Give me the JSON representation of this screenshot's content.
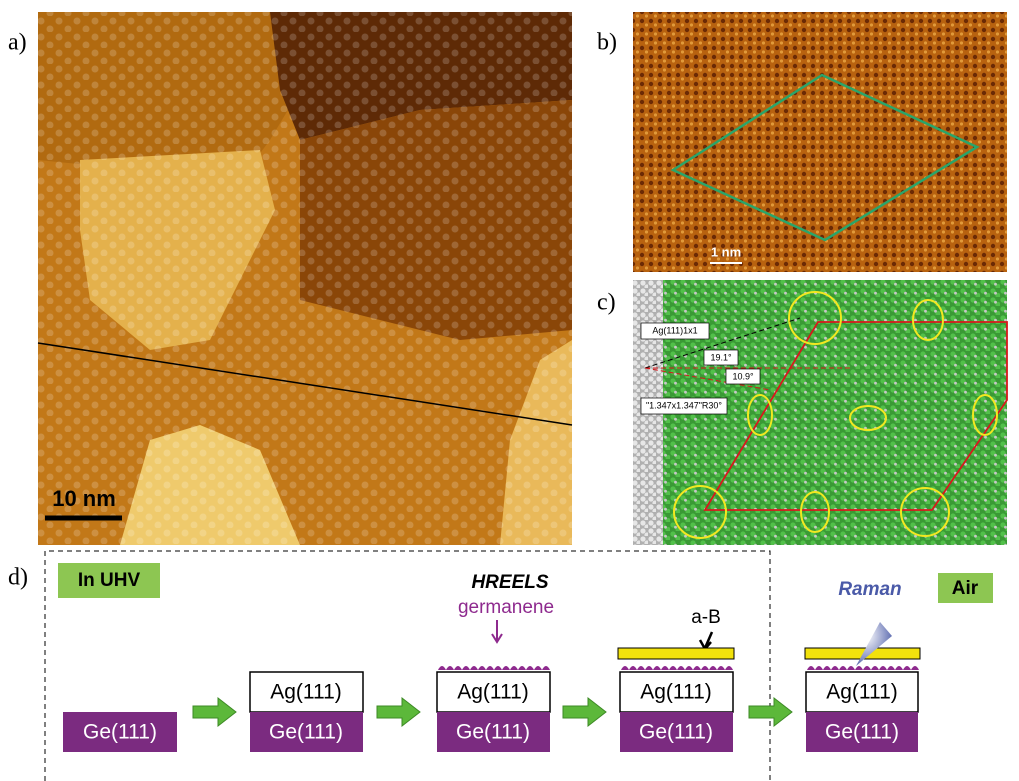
{
  "panels": {
    "a": {
      "label": "a)",
      "scale_bar": "10 nm"
    },
    "b": {
      "label": "b)",
      "scale_bar": "1 nm"
    },
    "c": {
      "label": "c)",
      "annotations": [
        "Ag(111)1x1",
        "19.1°",
        "10.9°",
        "\"1.347x1.347\"R30°"
      ]
    },
    "d": {
      "label": "d)",
      "in_uhv": "In UHV",
      "hreels": "HREELS",
      "germanene": "germanene",
      "a_b": "a-B",
      "raman": "Raman",
      "air": "Air",
      "stacks": [
        {
          "layers": [
            "Ge(111)"
          ]
        },
        {
          "layers": [
            "Ag(111)",
            "Ge(111)"
          ]
        },
        {
          "layers": [
            "Ag(111)",
            "Ge(111)"
          ]
        },
        {
          "layers": [
            "Ag(111)",
            "Ge(111)"
          ]
        },
        {
          "layers": [
            "Ag(111)",
            "Ge(111)"
          ]
        }
      ]
    }
  }
}
